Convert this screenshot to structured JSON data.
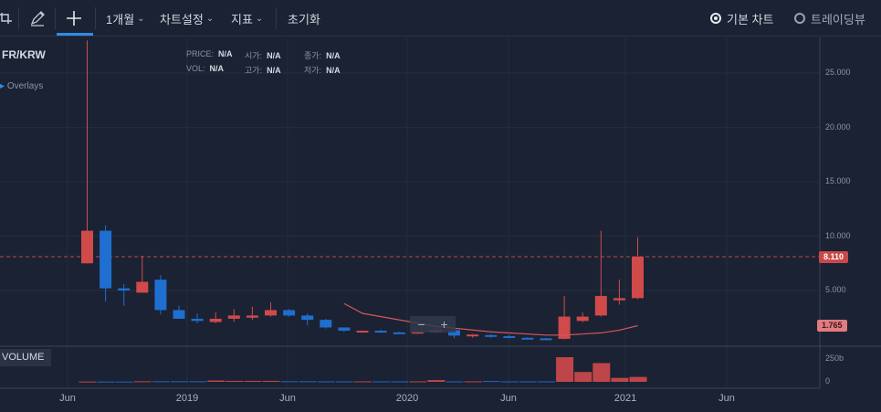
{
  "toolbar": {
    "period_label": "1개월",
    "chart_settings_label": "차트설정",
    "indicators_label": "지표",
    "reset_label": "초기화",
    "basic_chart_label": "기본 차트",
    "trading_view_label": "트레이딩뷰"
  },
  "legend": {
    "symbol": "FR/KRW",
    "overlays_label": "Overlays",
    "price_key": "PRICE:",
    "price_value": "N/A",
    "vol_key": "VOL:",
    "vol_value": "N/A",
    "open_key": "시가:",
    "open_value": "N/A",
    "high_key": "고가:",
    "high_value": "N/A",
    "close_key": "종가:",
    "close_value": "N/A",
    "low_key": "저가:",
    "low_value": "N/A"
  },
  "volume_label": "VOLUME",
  "colors": {
    "up": "#d04a4a",
    "down": "#1e6fd0",
    "ma": "#d8555c",
    "background": "#1b2233"
  },
  "chart_data": {
    "type": "candlestick",
    "y_ticks": [
      "25.000",
      "20.000",
      "15.000",
      "10.000",
      "5.000"
    ],
    "y_tick_values": [
      25000,
      20000,
      15000,
      10000,
      5000
    ],
    "x_ticks": [
      "Jun",
      "2019",
      "Jun",
      "2020",
      "Jun",
      "2021",
      "Jun"
    ],
    "volume_ticks": [
      "250b",
      "0"
    ],
    "last_price_label": "8.110",
    "last_price": 8110,
    "ma_label": "1.765",
    "ma_value": 1765,
    "candles": [
      {
        "o": 7500,
        "h": 28000,
        "l": 7500,
        "c": 10500,
        "v": 3
      },
      {
        "o": 10500,
        "h": 11000,
        "l": 4000,
        "c": 5200,
        "v": 3
      },
      {
        "o": 5200,
        "h": 5600,
        "l": 3600,
        "c": 5000,
        "v": 3
      },
      {
        "o": 4800,
        "h": 8200,
        "l": 4800,
        "c": 5800,
        "v": 6
      },
      {
        "o": 6000,
        "h": 6400,
        "l": 2800,
        "c": 3200,
        "v": 6
      },
      {
        "o": 3200,
        "h": 3600,
        "l": 2400,
        "c": 2400,
        "v": 6
      },
      {
        "o": 2400,
        "h": 2900,
        "l": 2000,
        "c": 2200,
        "v": 6
      },
      {
        "o": 2100,
        "h": 3000,
        "l": 2000,
        "c": 2400,
        "v": 14
      },
      {
        "o": 2400,
        "h": 3300,
        "l": 2100,
        "c": 2700,
        "v": 10
      },
      {
        "o": 2500,
        "h": 3500,
        "l": 2300,
        "c": 2700,
        "v": 10
      },
      {
        "o": 2700,
        "h": 3900,
        "l": 2600,
        "c": 3200,
        "v": 10
      },
      {
        "o": 3200,
        "h": 3300,
        "l": 2600,
        "c": 2700,
        "v": 6
      },
      {
        "o": 2700,
        "h": 2900,
        "l": 1800,
        "c": 2300,
        "v": 6
      },
      {
        "o": 2300,
        "h": 2400,
        "l": 1500,
        "c": 1600,
        "v": 5
      },
      {
        "o": 1600,
        "h": 1600,
        "l": 1200,
        "c": 1300,
        "v": 5
      },
      {
        "o": 1200,
        "h": 1300,
        "l": 1100,
        "c": 1300,
        "v": 5
      },
      {
        "o": 1300,
        "h": 1400,
        "l": 1100,
        "c": 1150,
        "v": 5
      },
      {
        "o": 1150,
        "h": 1200,
        "l": 1000,
        "c": 1050,
        "v": 5
      },
      {
        "o": 1050,
        "h": 1300,
        "l": 1000,
        "c": 1200,
        "v": 5
      },
      {
        "o": 1150,
        "h": 1500,
        "l": 1100,
        "c": 1350,
        "v": 18
      },
      {
        "o": 1350,
        "h": 1400,
        "l": 600,
        "c": 850,
        "v": 5
      },
      {
        "o": 800,
        "h": 1000,
        "l": 650,
        "c": 950,
        "v": 5
      },
      {
        "o": 900,
        "h": 1000,
        "l": 650,
        "c": 750,
        "v": 8
      },
      {
        "o": 800,
        "h": 900,
        "l": 600,
        "c": 650,
        "v": 5
      },
      {
        "o": 650,
        "h": 700,
        "l": 550,
        "c": 600,
        "v": 5
      },
      {
        "o": 600,
        "h": 650,
        "l": 500,
        "c": 550,
        "v": 5
      },
      {
        "o": 550,
        "h": 4500,
        "l": 500,
        "c": 2600,
        "v": 250
      },
      {
        "o": 2200,
        "h": 3000,
        "l": 2100,
        "c": 2600,
        "v": 100
      },
      {
        "o": 2700,
        "h": 10500,
        "l": 2600,
        "c": 4500,
        "v": 190
      },
      {
        "o": 4100,
        "h": 6000,
        "l": 3700,
        "c": 4300,
        "v": 40
      },
      {
        "o": 4300,
        "h": 9900,
        "l": 4200,
        "c": 8110,
        "v": 50
      }
    ],
    "ma": [
      {
        "i": 14,
        "value": 3800
      },
      {
        "i": 15,
        "value": 2900
      },
      {
        "i": 17,
        "value": 2300
      },
      {
        "i": 19,
        "value": 1700
      },
      {
        "i": 22,
        "value": 1200
      },
      {
        "i": 25,
        "value": 900
      },
      {
        "i": 26,
        "value": 900
      },
      {
        "i": 28,
        "value": 1100
      },
      {
        "i": 29,
        "value": 1350
      },
      {
        "i": 30,
        "value": 1765
      }
    ]
  }
}
